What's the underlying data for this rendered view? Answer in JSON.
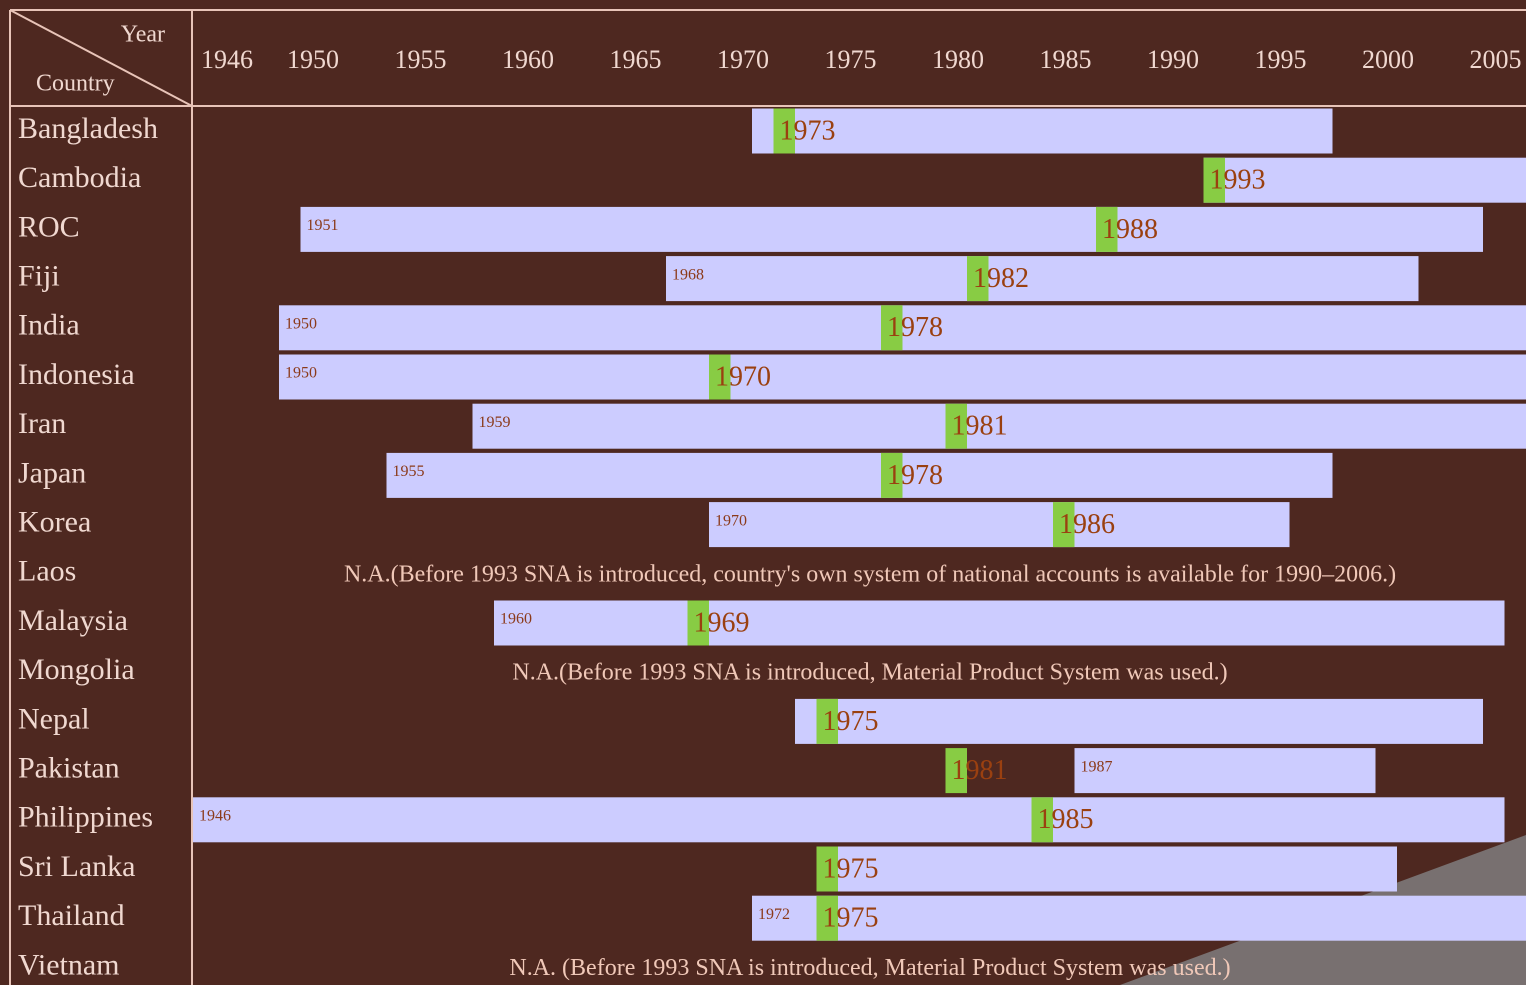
{
  "header": {
    "year": "Year",
    "country": "Country",
    "years": [
      1946,
      1950,
      1955,
      1960,
      1965,
      1970,
      1975,
      1980,
      1985,
      1990,
      1995,
      2000,
      2005
    ]
  },
  "rows": [
    {
      "country": "Bangladesh",
      "from": 1972,
      "to": 1999,
      "sna": 1973
    },
    {
      "country": "Cambodia",
      "from": 1993,
      "to": 2008,
      "sna": 1993
    },
    {
      "country": "ROC",
      "start": 1951,
      "to": 2006,
      "sna": 1988
    },
    {
      "country": "Fiji",
      "start": 1968,
      "to": 2003,
      "sna": 1982
    },
    {
      "country": "India",
      "start": 1950,
      "to": 2008,
      "sna": 1978
    },
    {
      "country": "Indonesia",
      "start": 1950,
      "to": 2008,
      "sna": 1970
    },
    {
      "country": "Iran",
      "start": 1959,
      "to": 2008,
      "sna": 1981
    },
    {
      "country": "Japan",
      "start": 1955,
      "to": 1999,
      "sna": 1978
    },
    {
      "country": "Korea",
      "start": 1970,
      "to": 1997,
      "sna": 1986
    },
    {
      "country": "Laos",
      "note": "N.A.(Before 1993 SNA is introduced, country's own system of national accounts is available for 1990–2006.)"
    },
    {
      "country": "Malaysia",
      "start": 1960,
      "to": 2007,
      "sna": 1969
    },
    {
      "country": "Mongolia",
      "note": "N.A.(Before 1993 SNA is introduced, Material Product System was used.)"
    },
    {
      "country": "Nepal",
      "from": 1974,
      "to": 2006,
      "sna": 1975
    },
    {
      "country": "Pakistan",
      "start": 1987,
      "to": 2001,
      "sna": 1981
    },
    {
      "country": "Philippines",
      "start": 1946,
      "to": 2007,
      "sna": 1985
    },
    {
      "country": "Sri Lanka",
      "from": 1975,
      "to": 2002,
      "sna": 1975
    },
    {
      "country": "Thailand",
      "start": 1972,
      "to": 2008,
      "sna": 1975
    },
    {
      "country": "Vietnam",
      "note": "N.A. (Before 1993 SNA is introduced, Material Product System was used.)"
    }
  ]
}
